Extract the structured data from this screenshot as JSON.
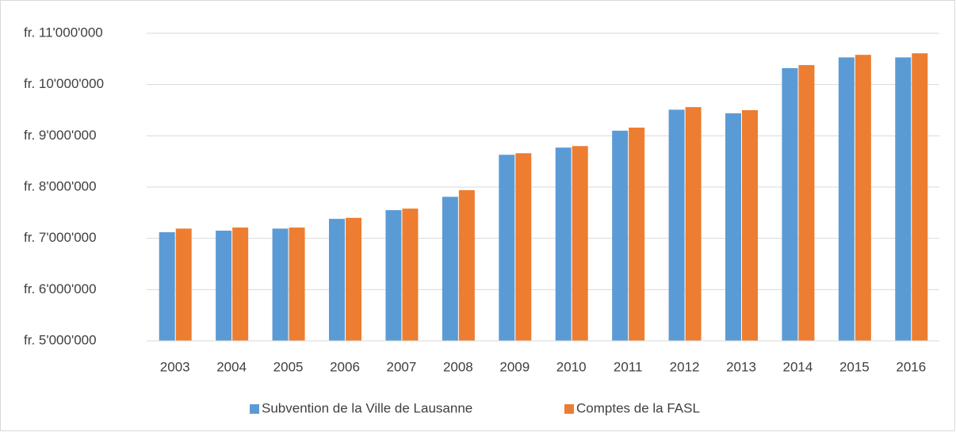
{
  "chart_data": {
    "type": "bar",
    "categories": [
      "2003",
      "2004",
      "2005",
      "2006",
      "2007",
      "2008",
      "2009",
      "2010",
      "2011",
      "2012",
      "2013",
      "2014",
      "2015",
      "2016"
    ],
    "series": [
      {
        "name": "Subvention de la Ville de Lausanne",
        "color": "#5b9bd5",
        "values": [
          7120000,
          7150000,
          7190000,
          7380000,
          7550000,
          7810000,
          8630000,
          8770000,
          9100000,
          9510000,
          9440000,
          10320000,
          10530000,
          10530000
        ]
      },
      {
        "name": "Comptes de la FASL",
        "color": "#ed7d31",
        "values": [
          7190000,
          7210000,
          7210000,
          7400000,
          7580000,
          7940000,
          8660000,
          8800000,
          9160000,
          9560000,
          9500000,
          10380000,
          10580000,
          10610000
        ]
      }
    ],
    "ylim": [
      5000000,
      11000000
    ],
    "yticks": [
      {
        "value": 5000000,
        "label": "fr. 5'000'000"
      },
      {
        "value": 6000000,
        "label": "fr. 6'000'000"
      },
      {
        "value": 7000000,
        "label": "fr. 7'000'000"
      },
      {
        "value": 8000000,
        "label": "fr. 8'000'000"
      },
      {
        "value": 9000000,
        "label": "fr. 9'000'000"
      },
      {
        "value": 10000000,
        "label": "fr. 10'000'000"
      },
      {
        "value": 11000000,
        "label": "fr. 11'000'000"
      }
    ],
    "grid": true,
    "legend": "bottom"
  }
}
